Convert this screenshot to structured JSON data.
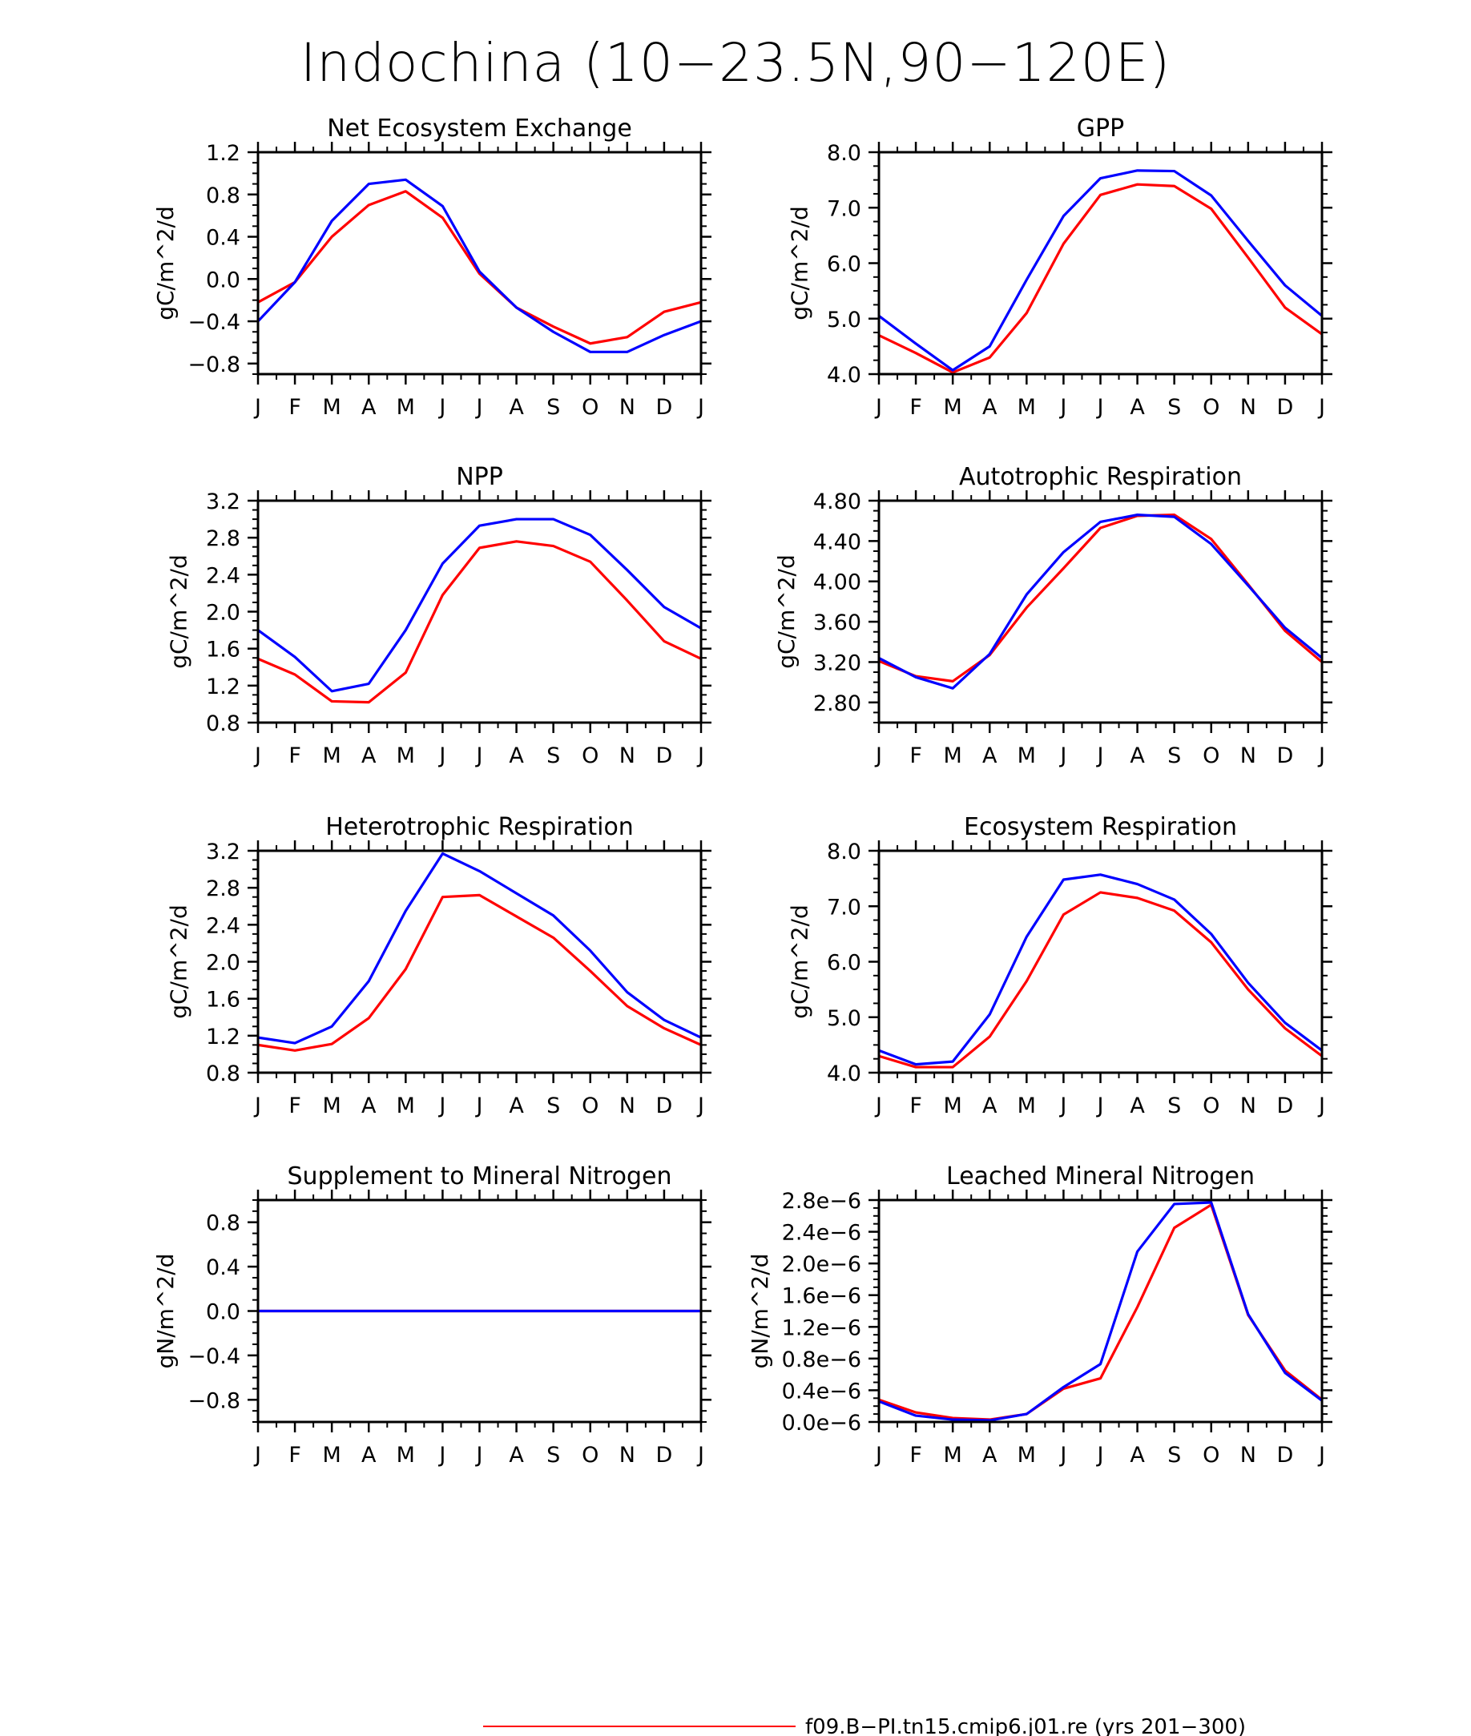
{
  "title": "Indochina (10−23.5N,90−120E)",
  "months": [
    "J",
    "F",
    "M",
    "A",
    "M",
    "J",
    "J",
    "A",
    "S",
    "O",
    "N",
    "D",
    "J"
  ],
  "colors": {
    "run1": "#ff0000",
    "run2": "#0000ff"
  },
  "legend": [
    {
      "label": "f09.B−PI.tn15.cmip6.j01.re (yrs 201−300)",
      "color": "#ff0000"
    }
  ],
  "chart_data": [
    {
      "type": "line",
      "title": "Net Ecosystem Exchange",
      "ylabel": "gC/m^2/d",
      "ylim": [
        -0.9,
        1.2
      ],
      "yticks": [
        "−0.8",
        "−0.4",
        "0.0",
        "0.4",
        "0.8",
        "1.2"
      ],
      "ytick_values": [
        -0.8,
        -0.4,
        0.0,
        0.4,
        0.8,
        1.2
      ],
      "series": [
        {
          "color": "red",
          "values": [
            -0.22,
            -0.03,
            0.4,
            0.7,
            0.83,
            0.58,
            0.05,
            -0.27,
            -0.45,
            -0.61,
            -0.55,
            -0.31,
            -0.22
          ]
        },
        {
          "color": "blue",
          "values": [
            -0.4,
            -0.03,
            0.55,
            0.9,
            0.94,
            0.69,
            0.07,
            -0.27,
            -0.5,
            -0.69,
            -0.69,
            -0.53,
            -0.4
          ]
        }
      ]
    },
    {
      "type": "line",
      "title": "GPP",
      "ylabel": "gC/m^2/d",
      "ylim": [
        4.0,
        8.0
      ],
      "yticks": [
        "4.0",
        "5.0",
        "6.0",
        "7.0",
        "8.0"
      ],
      "ytick_values": [
        4.0,
        5.0,
        6.0,
        7.0,
        8.0
      ],
      "series": [
        {
          "color": "red",
          "values": [
            4.7,
            4.38,
            4.03,
            4.3,
            5.1,
            6.35,
            7.23,
            7.42,
            7.39,
            6.98,
            6.1,
            5.2,
            4.72
          ]
        },
        {
          "color": "blue",
          "values": [
            5.05,
            4.55,
            4.07,
            4.5,
            5.7,
            6.85,
            7.53,
            7.67,
            7.66,
            7.22,
            6.4,
            5.6,
            5.05
          ]
        }
      ]
    },
    {
      "type": "line",
      "title": "NPP",
      "ylabel": "gC/m^2/d",
      "ylim": [
        0.8,
        3.2
      ],
      "yticks": [
        "0.8",
        "1.2",
        "1.6",
        "2.0",
        "2.4",
        "2.8",
        "3.2"
      ],
      "ytick_values": [
        0.8,
        1.2,
        1.6,
        2.0,
        2.4,
        2.8,
        3.2
      ],
      "series": [
        {
          "color": "red",
          "values": [
            1.49,
            1.32,
            1.03,
            1.02,
            1.34,
            2.18,
            2.69,
            2.76,
            2.71,
            2.54,
            2.12,
            1.68,
            1.49
          ]
        },
        {
          "color": "blue",
          "values": [
            1.8,
            1.51,
            1.14,
            1.22,
            1.8,
            2.52,
            2.93,
            3.0,
            3.0,
            2.83,
            2.45,
            2.05,
            1.82
          ]
        }
      ]
    },
    {
      "type": "line",
      "title": "Autotrophic Respiration",
      "ylabel": "gC/m^2/d",
      "ylim": [
        2.6,
        4.8
      ],
      "yticks": [
        "2.80",
        "3.20",
        "3.60",
        "4.00",
        "4.40",
        "4.80"
      ],
      "ytick_values": [
        2.8,
        3.2,
        3.6,
        4.0,
        4.4,
        4.8
      ],
      "series": [
        {
          "color": "red",
          "values": [
            3.21,
            3.06,
            3.01,
            3.27,
            3.74,
            4.13,
            4.53,
            4.65,
            4.66,
            4.42,
            3.97,
            3.51,
            3.2
          ]
        },
        {
          "color": "blue",
          "values": [
            3.24,
            3.05,
            2.94,
            3.28,
            3.87,
            4.29,
            4.59,
            4.66,
            4.64,
            4.37,
            3.96,
            3.54,
            3.24
          ]
        }
      ]
    },
    {
      "type": "line",
      "title": "Heterotrophic Respiration",
      "ylabel": "gC/m^2/d",
      "ylim": [
        0.8,
        3.2
      ],
      "yticks": [
        "0.8",
        "1.2",
        "1.6",
        "2.0",
        "2.4",
        "2.8",
        "3.2"
      ],
      "ytick_values": [
        0.8,
        1.2,
        1.6,
        2.0,
        2.4,
        2.8,
        3.2
      ],
      "series": [
        {
          "color": "red",
          "values": [
            1.1,
            1.04,
            1.11,
            1.39,
            1.92,
            2.7,
            2.72,
            2.49,
            2.26,
            1.9,
            1.52,
            1.28,
            1.1
          ]
        },
        {
          "color": "blue",
          "values": [
            1.18,
            1.12,
            1.3,
            1.79,
            2.55,
            3.17,
            2.98,
            2.74,
            2.5,
            2.12,
            1.67,
            1.37,
            1.18
          ]
        }
      ]
    },
    {
      "type": "line",
      "title": "Ecosystem Respiration",
      "ylabel": "gC/m^2/d",
      "ylim": [
        4.0,
        8.0
      ],
      "yticks": [
        "4.0",
        "5.0",
        "6.0",
        "7.0",
        "8.0"
      ],
      "ytick_values": [
        4.0,
        5.0,
        6.0,
        7.0,
        8.0
      ],
      "series": [
        {
          "color": "red",
          "values": [
            4.3,
            4.1,
            4.1,
            4.65,
            5.65,
            6.85,
            7.25,
            7.15,
            6.92,
            6.35,
            5.5,
            4.8,
            4.3
          ]
        },
        {
          "color": "blue",
          "values": [
            4.4,
            4.15,
            4.2,
            5.05,
            6.45,
            7.48,
            7.57,
            7.4,
            7.12,
            6.5,
            5.62,
            4.9,
            4.4
          ]
        }
      ]
    },
    {
      "type": "line",
      "title": "Supplement to Mineral Nitrogen",
      "ylabel": "gN/m^2/d",
      "ylim": [
        -1.0,
        1.0
      ],
      "yticks": [
        "−0.8",
        "−0.4",
        "0.0",
        "0.4",
        "0.8"
      ],
      "ytick_values": [
        -0.8,
        -0.4,
        0.0,
        0.4,
        0.8
      ],
      "series": [
        {
          "color": "red",
          "values": [
            0,
            0,
            0,
            0,
            0,
            0,
            0,
            0,
            0,
            0,
            0,
            0,
            0
          ]
        },
        {
          "color": "blue",
          "values": [
            0,
            0,
            0,
            0,
            0,
            0,
            0,
            0,
            0,
            0,
            0,
            0,
            0
          ]
        }
      ]
    },
    {
      "type": "line",
      "title": "Leached Mineral Nitrogen",
      "ylabel": "gN/m^2/d",
      "ylim": [
        0.0,
        2.8e-06
      ],
      "yticks": [
        "0.0e−6",
        "0.4e−6",
        "0.8e−6",
        "1.2e−6",
        "1.6e−6",
        "2.0e−6",
        "2.4e−6",
        "2.8e−6"
      ],
      "ytick_values": [
        0,
        4e-07,
        8e-07,
        1.2e-06,
        1.6e-06,
        2e-06,
        2.4e-06,
        2.8e-06
      ],
      "series": [
        {
          "color": "red",
          "values": [
            2.8e-07,
            1.2e-07,
            5e-08,
            3e-08,
            1e-07,
            4.2e-07,
            5.5e-07,
            1.45e-06,
            2.45e-06,
            2.74e-06,
            1.35e-06,
            6.5e-07,
            2.8e-07
          ]
        },
        {
          "color": "blue",
          "values": [
            2.6e-07,
            8e-08,
            3e-08,
            2e-08,
            1e-07,
            4.4e-07,
            7.3e-07,
            2.15e-06,
            2.75e-06,
            2.77e-06,
            1.36e-06,
            6.2e-07,
            2.7e-07
          ]
        }
      ]
    }
  ]
}
